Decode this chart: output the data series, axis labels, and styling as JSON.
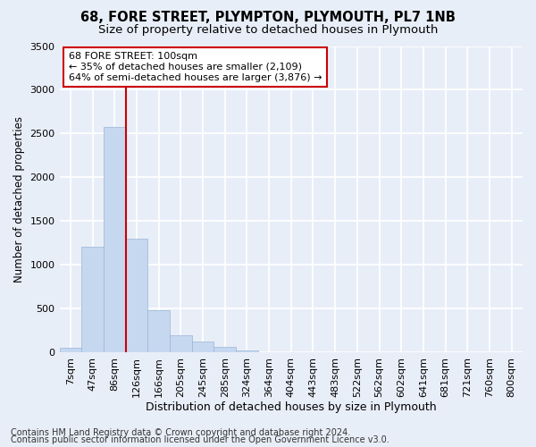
{
  "title1": "68, FORE STREET, PLYMPTON, PLYMOUTH, PL7 1NB",
  "title2": "Size of property relative to detached houses in Plymouth",
  "xlabel": "Distribution of detached houses by size in Plymouth",
  "ylabel": "Number of detached properties",
  "categories": [
    "7sqm",
    "47sqm",
    "86sqm",
    "126sqm",
    "166sqm",
    "205sqm",
    "245sqm",
    "285sqm",
    "324sqm",
    "364sqm",
    "404sqm",
    "443sqm",
    "483sqm",
    "522sqm",
    "562sqm",
    "602sqm",
    "641sqm",
    "681sqm",
    "721sqm",
    "760sqm",
    "800sqm"
  ],
  "values": [
    50,
    1210,
    2580,
    1300,
    480,
    200,
    120,
    60,
    20,
    5,
    1,
    0,
    0,
    0,
    0,
    0,
    0,
    0,
    0,
    0,
    0
  ],
  "bar_color": "#c5d8f0",
  "bar_edge_color": "#9ab5d4",
  "red_line_x": 2.5,
  "annotation_text_line1": "68 FORE STREET: 100sqm",
  "annotation_text_line2": "← 35% of detached houses are smaller (2,109)",
  "annotation_text_line3": "64% of semi-detached houses are larger (3,876) →",
  "annotation_box_color": "#ffffff",
  "annotation_box_edge_color": "#cc0000",
  "ylim": [
    0,
    3500
  ],
  "yticks": [
    0,
    500,
    1000,
    1500,
    2000,
    2500,
    3000,
    3500
  ],
  "bg_color": "#e8eef8",
  "plot_bg_color": "#e8eef8",
  "grid_color": "#ffffff",
  "footer1": "Contains HM Land Registry data © Crown copyright and database right 2024.",
  "footer2": "Contains public sector information licensed under the Open Government Licence v3.0.",
  "title1_fontsize": 10.5,
  "title2_fontsize": 9.5,
  "xlabel_fontsize": 9,
  "ylabel_fontsize": 8.5,
  "tick_fontsize": 8,
  "annotation_fontsize": 8,
  "footer_fontsize": 7
}
